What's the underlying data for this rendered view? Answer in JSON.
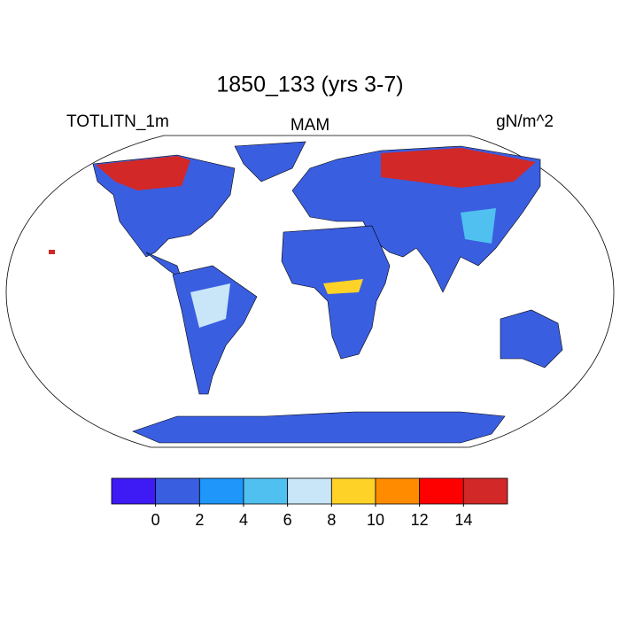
{
  "title": "1850_133 (yrs 3-7)",
  "left_label": "TOTLITN_1m",
  "center_label": "MAM",
  "right_label": "gN/m^2",
  "colorbar": {
    "colors": [
      "#3e1af5",
      "#3a5ee0",
      "#1e96fa",
      "#50c0f0",
      "#c8e6f8",
      "#ffd228",
      "#ff8c00",
      "#ff0000",
      "#d22828"
    ],
    "ticks": [
      0,
      2,
      4,
      6,
      8,
      10,
      12,
      14
    ]
  }
}
